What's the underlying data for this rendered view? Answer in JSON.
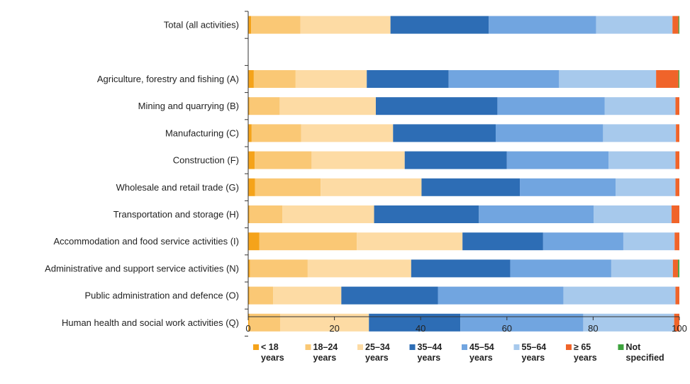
{
  "chart_data": {
    "type": "bar",
    "orientation": "horizontal",
    "stacked": true,
    "categories": [
      "Total (all activities)",
      "",
      "Agriculture, forestry and fishing (A)",
      "Mining and quarrying (B)",
      "Manufacturing (C)",
      "Construction (F)",
      "Wholesale and retail trade (G)",
      "Transportation and storage (H)",
      "Accommodation and food service activities (I)",
      "Administrative and support service activities (N)",
      "Public administration and defence (O)",
      "Human health and social work activities (Q)"
    ],
    "series": [
      {
        "name": "< 18 years",
        "color": "#f5a31a",
        "values": [
          0.7,
          null,
          1.3,
          0.3,
          0.8,
          1.5,
          1.6,
          0.3,
          2.6,
          0.4,
          0.3,
          0.3
        ]
      },
      {
        "name": "18–24 years",
        "color": "#fac875",
        "values": [
          11.4,
          null,
          9.7,
          7.0,
          11.5,
          13.2,
          15.2,
          7.6,
          22.6,
          13.4,
          5.5,
          7.1
        ]
      },
      {
        "name": "25–34 years",
        "color": "#fddba4",
        "values": [
          20.9,
          null,
          16.5,
          22.3,
          21.3,
          21.6,
          23.4,
          21.3,
          24.5,
          24.0,
          15.8,
          20.6
        ]
      },
      {
        "name": "35–44 years",
        "color": "#2d6db5",
        "values": [
          22.8,
          null,
          19.0,
          28.2,
          23.8,
          23.7,
          22.8,
          24.3,
          18.7,
          23.0,
          22.4,
          21.2
        ]
      },
      {
        "name": "45–54 years",
        "color": "#71a5e0",
        "values": [
          24.9,
          null,
          25.6,
          24.9,
          24.9,
          23.6,
          22.2,
          26.6,
          18.6,
          23.4,
          29.1,
          28.5
        ]
      },
      {
        "name": "55–64 years",
        "color": "#a7c9ec",
        "values": [
          17.7,
          null,
          22.5,
          16.4,
          16.9,
          15.5,
          13.9,
          18.1,
          11.9,
          14.3,
          26.0,
          21.1
        ]
      },
      {
        "name": "≥ 65 years",
        "color": "#f0642a",
        "values": [
          1.4,
          null,
          5.2,
          0.9,
          0.8,
          0.9,
          0.9,
          1.8,
          1.1,
          1.2,
          0.9,
          1.2
        ]
      },
      {
        "name": "Not specified",
        "color": "#3da33d",
        "values": [
          0.2,
          null,
          0.2,
          0.0,
          0.0,
          0.0,
          0.0,
          0.0,
          0.0,
          0.3,
          0.0,
          0.0
        ]
      }
    ],
    "xlim": [
      0,
      100
    ],
    "xticks": [
      0,
      20,
      40,
      60,
      80,
      100
    ],
    "grid": false,
    "legend": "bottom"
  }
}
